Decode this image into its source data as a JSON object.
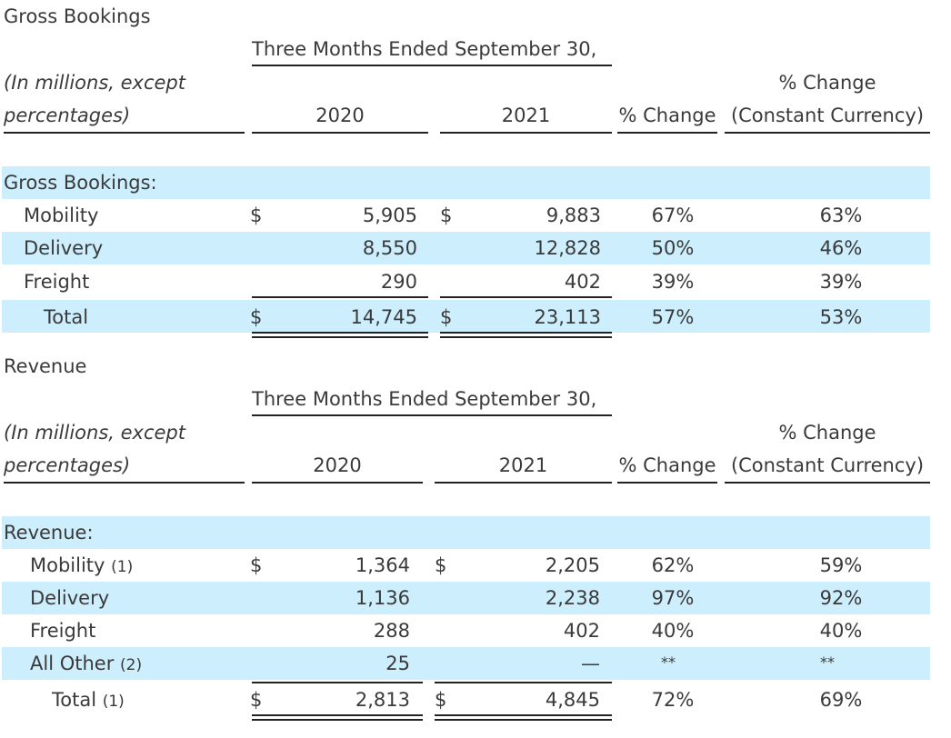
{
  "gross_bookings": {
    "section_title": "Gross Bookings",
    "period_header": "Three Months Ended September 30,",
    "units_line1": "(In millions, except",
    "units_line2": "percentages)",
    "year_1": "2020",
    "year_2": "2021",
    "pct_change": "% Change",
    "pct_change_cc_line1": "% Change",
    "pct_change_cc_line2": "(Constant Currency)",
    "group_label": "Gross Bookings:",
    "currency": "$",
    "rows": [
      {
        "label": "Mobility",
        "v2020": "5,905",
        "v2021": "9,883",
        "chg": "67%",
        "chg_cc": "63%"
      },
      {
        "label": "Delivery",
        "v2020": "8,550",
        "v2021": "12,828",
        "chg": "50%",
        "chg_cc": "46%"
      },
      {
        "label": "Freight",
        "v2020": "290",
        "v2021": "402",
        "chg": "39%",
        "chg_cc": "39%"
      }
    ],
    "total": {
      "label": "Total",
      "v2020": "14,745",
      "v2021": "23,113",
      "chg": "57%",
      "chg_cc": "53%"
    }
  },
  "revenue": {
    "section_title": "Revenue",
    "period_header": "Three Months Ended September 30,",
    "units_line1": "(In millions, except",
    "units_line2": "percentages)",
    "year_1": "2020",
    "year_2": "2021",
    "pct_change": "% Change",
    "pct_change_cc_line1": "% Change",
    "pct_change_cc_line2": "(Constant Currency)",
    "group_label": "Revenue:",
    "currency": "$",
    "rows": [
      {
        "label": "Mobility",
        "note": "(1)",
        "v2020": "1,364",
        "v2021": "2,205",
        "chg": "62%",
        "chg_cc": "59%"
      },
      {
        "label": "Delivery",
        "v2020": "1,136",
        "v2021": "2,238",
        "chg": "97%",
        "chg_cc": "92%"
      },
      {
        "label": "Freight",
        "v2020": "288",
        "v2021": "402",
        "chg": "40%",
        "chg_cc": "40%"
      },
      {
        "label": "All Other",
        "note": "(2)",
        "v2020": "25",
        "v2021": "—",
        "chg": "**",
        "chg_cc": "**"
      }
    ],
    "total": {
      "label": "Total",
      "note": "(1)",
      "v2020": "2,813",
      "v2021": "4,845",
      "chg": "72%",
      "chg_cc": "69%"
    }
  }
}
